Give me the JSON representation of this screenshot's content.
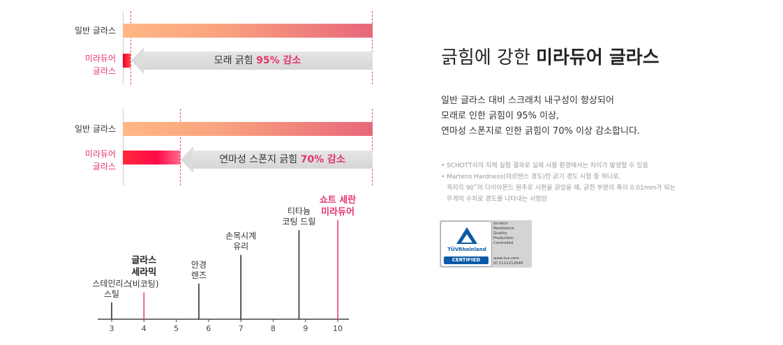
{
  "compare": [
    {
      "normal_label": "일반 글라스",
      "mira_label": [
        "미라듀어",
        "글라스"
      ],
      "arrow_prefix": "모래 긁힘",
      "arrow_highlight": "95% 감소",
      "reduction_pct": 95
    },
    {
      "normal_label": "일반 글라스",
      "mira_label": [
        "미라듀어",
        "글라스"
      ],
      "arrow_prefix": "연마성 스폰지 긁힘",
      "arrow_highlight": "70% 감소",
      "reduction_pct": 70
    }
  ],
  "colors": {
    "accent": "#e5346a",
    "normal_bar_start": "#ffb784",
    "normal_bar_end": "#e8677b",
    "mira_bar": "#ff2a3d",
    "arrow_gray": "#dcdcdc",
    "tuv_blue": "#0a5aa6"
  },
  "chart_data": {
    "type": "scatter",
    "xlim": [
      3,
      10
    ],
    "ticks": [
      "3",
      "4",
      "5",
      "6",
      "7",
      "8",
      "9",
      "10"
    ],
    "points": [
      {
        "x": 3,
        "height": 0.17,
        "label": [
          "스테인리스",
          "스틸"
        ],
        "style": "normal"
      },
      {
        "x": 4,
        "height": 0.27,
        "label": [
          "글라스",
          "세라믹",
          "(비코팅)"
        ],
        "style": "bold"
      },
      {
        "x": 5.7,
        "height": 0.36,
        "label": [
          "안경",
          "렌즈"
        ],
        "style": "normal"
      },
      {
        "x": 7,
        "height": 0.65,
        "label": [
          "손목시계",
          "유리"
        ],
        "style": "normal"
      },
      {
        "x": 8.8,
        "height": 0.9,
        "label": [
          "티타늄",
          "코팅 드릴"
        ],
        "style": "normal"
      },
      {
        "x": 10,
        "height": 1.0,
        "label": [
          "쇼트 세란",
          "미라듀어"
        ],
        "style": "pink"
      }
    ]
  },
  "headline": {
    "prefix": "긁힘에 강한 ",
    "bold": "미라듀어 글라스"
  },
  "desc": [
    "일반 글라스 대비 스크래치 내구성이 향상되어",
    "모래로 인한 긁힘이 95% 이상,",
    "연마성 스폰지로 인한 긁힘이 70% 이상 감소합니다."
  ],
  "notes": [
    {
      "text": "SCHOTT사의 자체 실험 결과로 실제 사용 환경에서는 차이가 발생할 수 있음",
      "cont": []
    },
    {
      "text": "Martens Hardness(마르텐스 경도)란 긁기 경도 시험 중 하나로,",
      "cont": [
        "꼭지각 90˚의 다이아몬드 원추로 시편을 긁었을 때, 긁힌 부분의 폭이 0.01mm가 되는",
        "무게의 수치로 경도를 나타내는 시험임"
      ]
    }
  ],
  "badge": {
    "brand": "TÜVRheinland",
    "certified": "CERTIFIED",
    "lines": [
      "Scratch",
      "Resistance",
      "Quality",
      "Production",
      "Controlled"
    ],
    "url": "www.tuv.com",
    "id": "ID  1111212640"
  }
}
